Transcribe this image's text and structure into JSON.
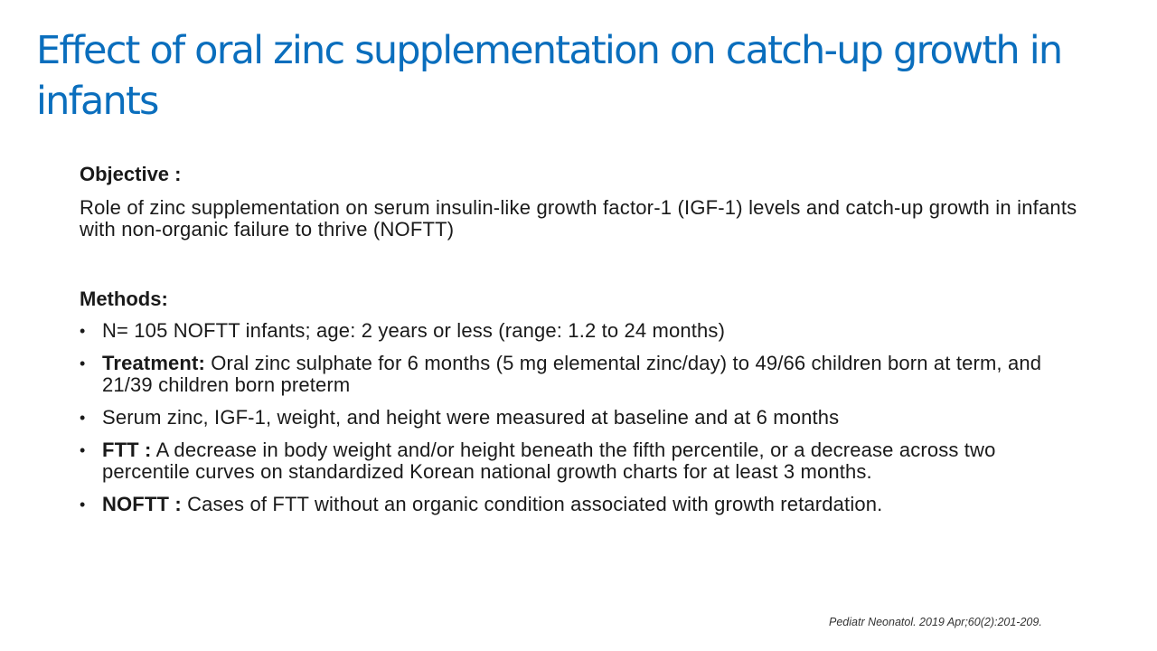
{
  "slide": {
    "title": "Effect of oral zinc supplementation on catch-up growth in infants",
    "objective": {
      "heading": "Objective :",
      "text": "Role of zinc supplementation on serum insulin-like growth factor-1 (IGF-1) levels and catch-up growth in infants with non-organic failure to thrive (NOFTT)"
    },
    "methods": {
      "heading": "Methods:",
      "bullet_symbol": "•",
      "bullets": [
        {
          "label": "",
          "text": "N= 105 NOFTT infants; age: 2 years or less (range: 1.2 to 24 months)"
        },
        {
          "label": "Treatment:",
          "text": " Oral zinc sulphate for 6 months (5 mg elemental zinc/day) to 49/66 children born at term, and 21/39 children born preterm"
        },
        {
          "label": "",
          "text": "Serum zinc, IGF-1, weight, and height were measured at baseline and at 6 months"
        },
        {
          "label": "FTT :",
          "text": " A decrease in body weight and/or height beneath the fifth percentile, or a decrease across two percentile curves on standardized Korean national growth charts for at least 3 months."
        },
        {
          "label": "NOFTT :",
          "text": " Cases of FTT without an organic condition associated with growth retardation."
        }
      ]
    },
    "citation": "Pediatr Neonatol. 2019 Apr;60(2):201-209."
  }
}
